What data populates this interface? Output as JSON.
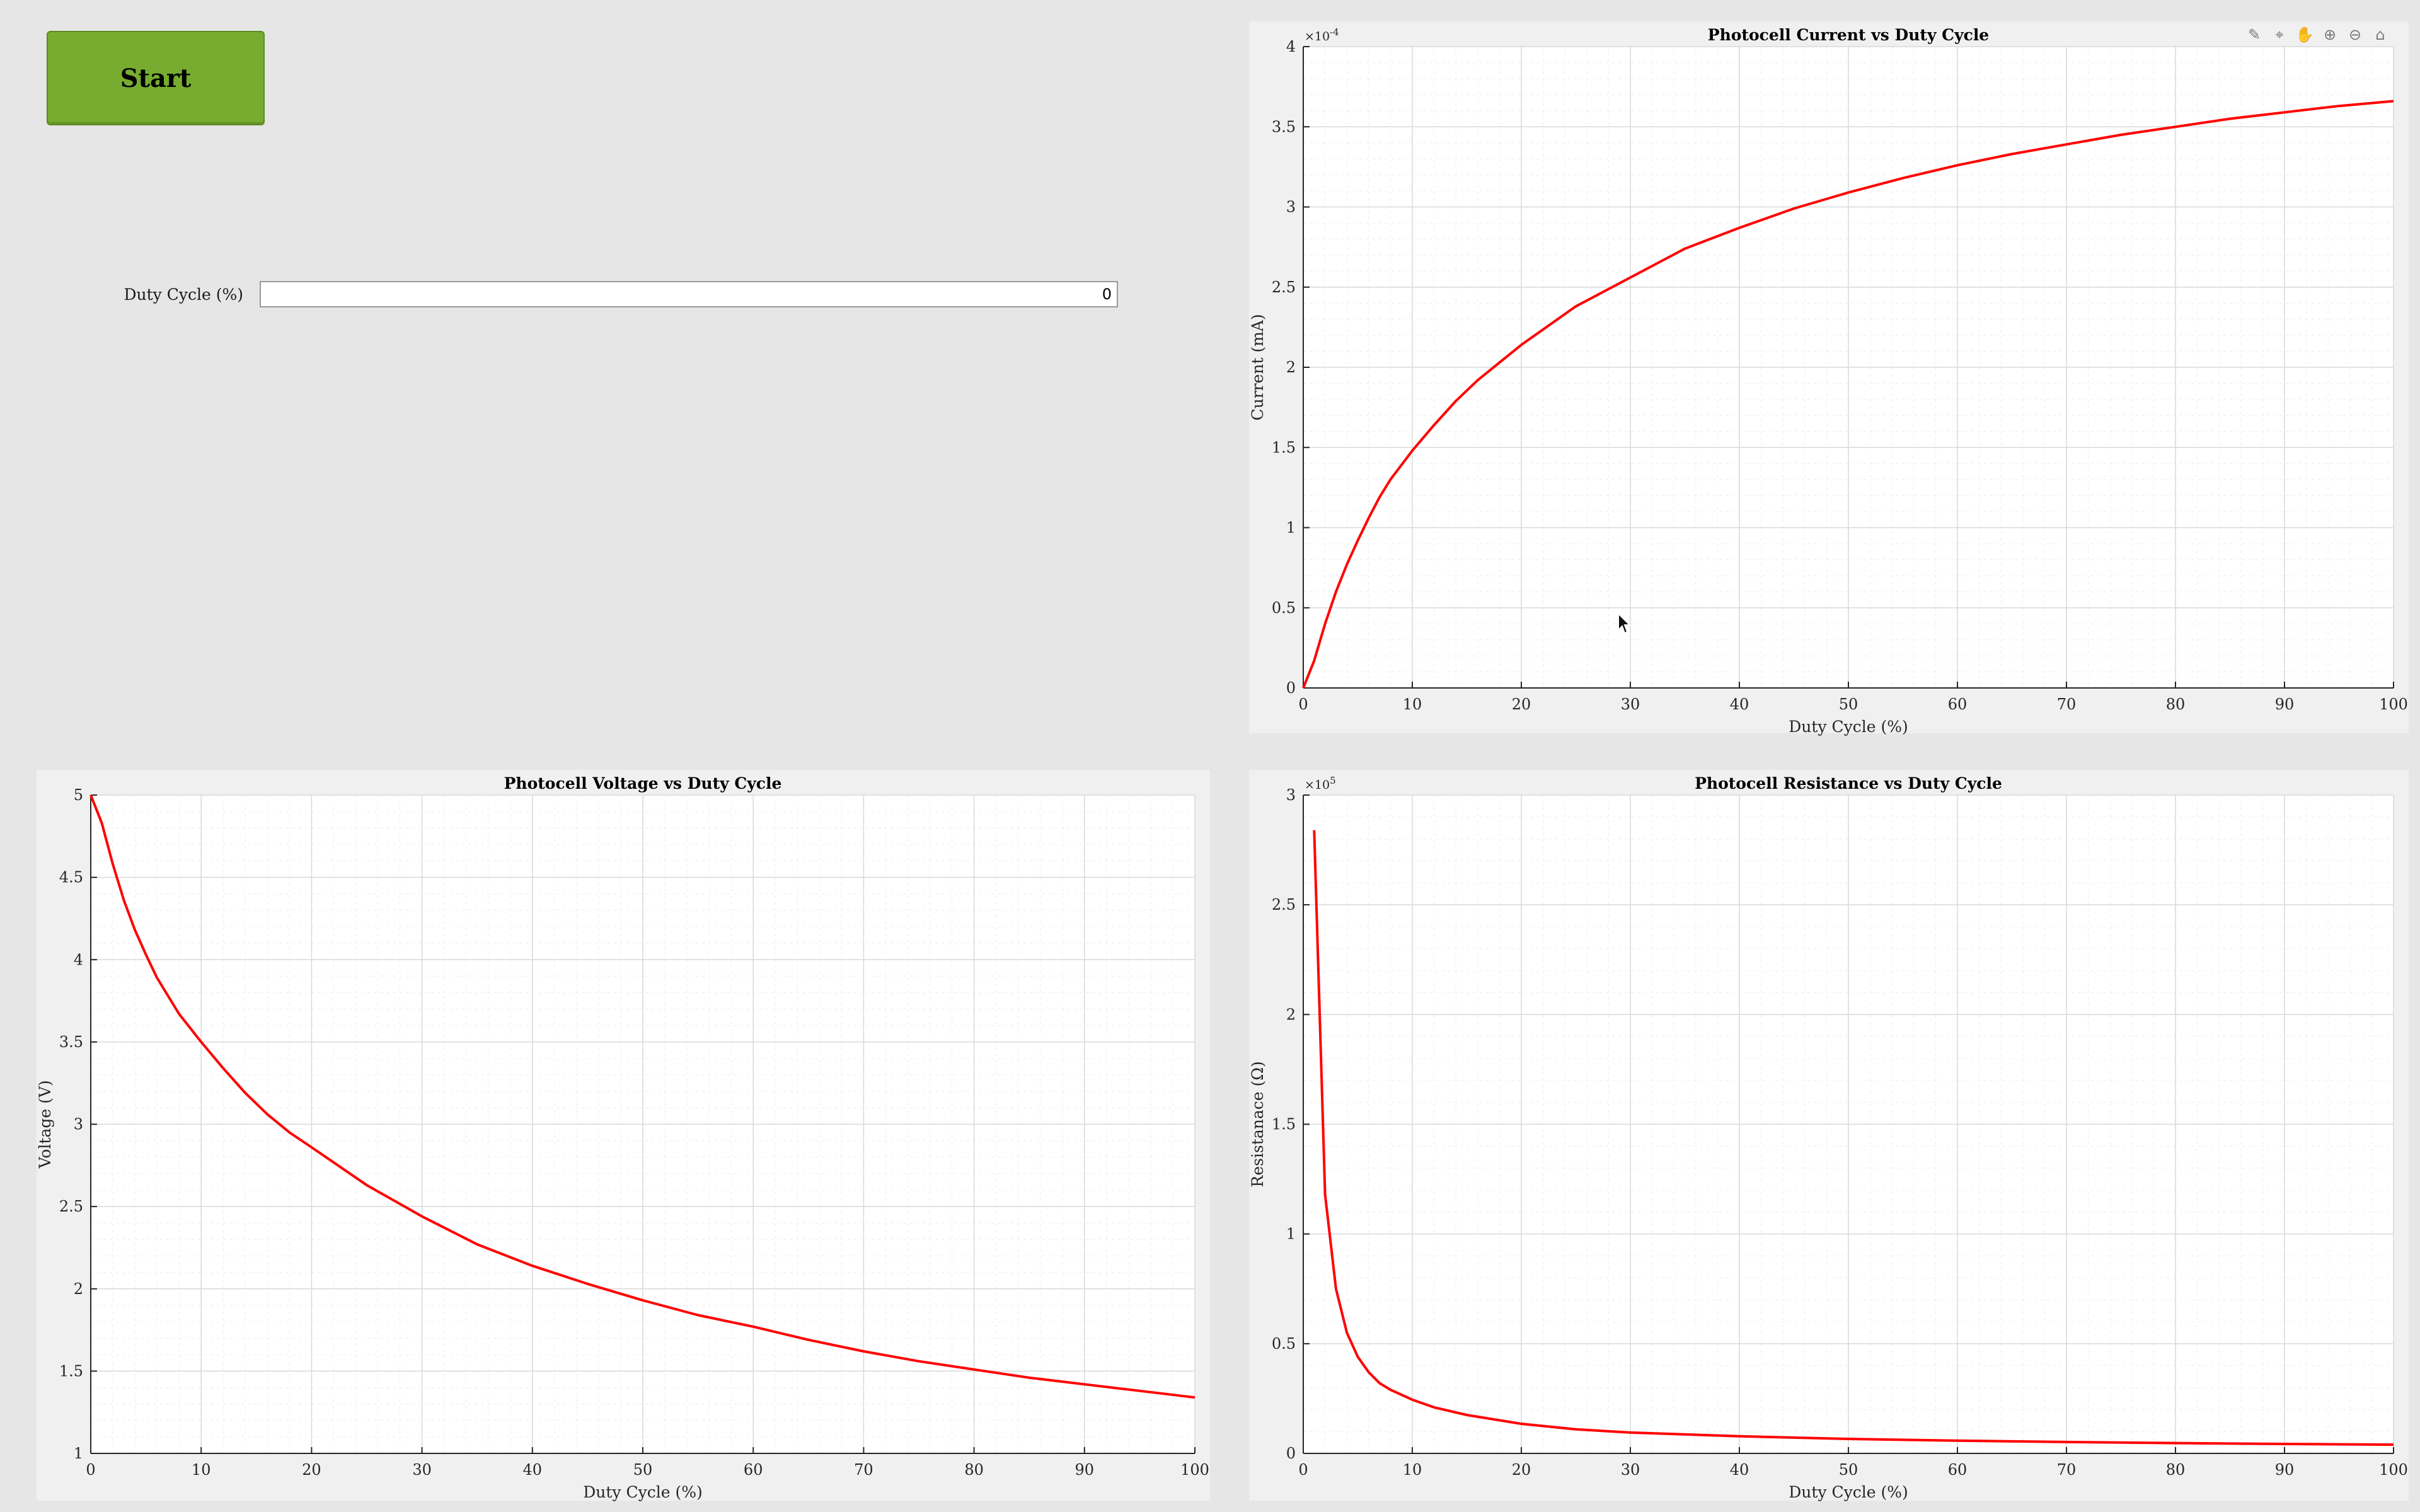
{
  "controls": {
    "start_label": "Start",
    "duty_label": "Duty Cycle (%)",
    "duty_value": "0"
  },
  "toolbar": {
    "icons": [
      "brush-icon",
      "data-tips-icon",
      "pan-icon",
      "zoom-in-icon",
      "zoom-out-icon",
      "home-icon"
    ]
  },
  "colors": {
    "series": "#ff0000",
    "start_button": "#77ac30"
  },
  "chart_data": [
    {
      "id": "current",
      "type": "line",
      "title": "Photocell Current vs Duty Cycle",
      "xlabel": "Duty Cycle (%)",
      "ylabel": "Current (mA)",
      "xlim": [
        0,
        100
      ],
      "ylim": [
        0,
        4
      ],
      "exponent": "×10",
      "exponent_power": "-4",
      "x_ticks": [
        0,
        10,
        20,
        30,
        40,
        50,
        60,
        70,
        80,
        90,
        100
      ],
      "y_ticks": [
        0,
        0.5,
        1,
        1.5,
        2,
        2.5,
        3,
        3.5,
        4
      ],
      "y_tick_labels": [
        "0",
        "0.5",
        "1",
        "1.5",
        "2",
        "2.5",
        "3",
        "3.5",
        "4"
      ],
      "grid": true,
      "x": [
        0,
        1,
        2,
        3,
        4,
        5,
        6,
        7,
        8,
        10,
        12,
        14,
        16,
        18,
        20,
        25,
        30,
        35,
        40,
        45,
        50,
        55,
        60,
        65,
        70,
        75,
        80,
        85,
        90,
        95,
        100
      ],
      "y": [
        0,
        0.17,
        0.4,
        0.6,
        0.77,
        0.92,
        1.06,
        1.19,
        1.3,
        1.48,
        1.64,
        1.79,
        1.92,
        2.03,
        2.14,
        2.38,
        2.56,
        2.74,
        2.87,
        2.99,
        3.09,
        3.18,
        3.26,
        3.33,
        3.39,
        3.45,
        3.5,
        3.55,
        3.59,
        3.63,
        3.66
      ]
    },
    {
      "id": "voltage",
      "type": "line",
      "title": "Photocell Voltage vs Duty Cycle",
      "xlabel": "Duty Cycle (%)",
      "ylabel": "Voltage (V)",
      "xlim": [
        0,
        100
      ],
      "ylim": [
        1,
        5
      ],
      "exponent": "",
      "exponent_power": "",
      "x_ticks": [
        0,
        10,
        20,
        30,
        40,
        50,
        60,
        70,
        80,
        90,
        100
      ],
      "y_ticks": [
        1,
        1.5,
        2,
        2.5,
        3,
        3.5,
        4,
        4.5,
        5
      ],
      "y_tick_labels": [
        "1",
        "1.5",
        "2",
        "2.5",
        "3",
        "3.5",
        "4",
        "4.5",
        "5"
      ],
      "grid": true,
      "x": [
        0,
        1,
        2,
        3,
        4,
        5,
        6,
        8,
        10,
        12,
        14,
        16,
        18,
        20,
        25,
        30,
        35,
        40,
        45,
        50,
        55,
        60,
        65,
        70,
        75,
        80,
        85,
        90,
        95,
        100
      ],
      "y": [
        5,
        4.83,
        4.58,
        4.36,
        4.18,
        4.03,
        3.89,
        3.67,
        3.5,
        3.34,
        3.19,
        3.06,
        2.95,
        2.86,
        2.63,
        2.44,
        2.27,
        2.14,
        2.03,
        1.93,
        1.84,
        1.77,
        1.69,
        1.62,
        1.56,
        1.51,
        1.46,
        1.42,
        1.38,
        1.34
      ]
    },
    {
      "id": "resistance",
      "type": "line",
      "title": "Photocell Resistance vs Duty Cycle",
      "xlabel": "Duty Cycle (%)",
      "ylabel": "Resistanace (Ω)",
      "xlim": [
        0,
        100
      ],
      "ylim": [
        0,
        3
      ],
      "exponent": "×10",
      "exponent_power": "5",
      "x_ticks": [
        0,
        10,
        20,
        30,
        40,
        50,
        60,
        70,
        80,
        90,
        100
      ],
      "y_ticks": [
        0,
        0.5,
        1,
        1.5,
        2,
        2.5,
        3
      ],
      "y_tick_labels": [
        "0",
        "0.5",
        "1",
        "1.5",
        "2",
        "2.5",
        "3"
      ],
      "grid": true,
      "x": [
        1,
        2,
        3,
        4,
        5,
        6,
        7,
        8,
        10,
        12,
        15,
        20,
        25,
        30,
        40,
        50,
        60,
        70,
        80,
        90,
        100
      ],
      "y": [
        2.84,
        1.18,
        0.75,
        0.55,
        0.44,
        0.37,
        0.32,
        0.29,
        0.245,
        0.21,
        0.175,
        0.135,
        0.11,
        0.095,
        0.078,
        0.066,
        0.058,
        0.052,
        0.047,
        0.043,
        0.04
      ]
    }
  ]
}
